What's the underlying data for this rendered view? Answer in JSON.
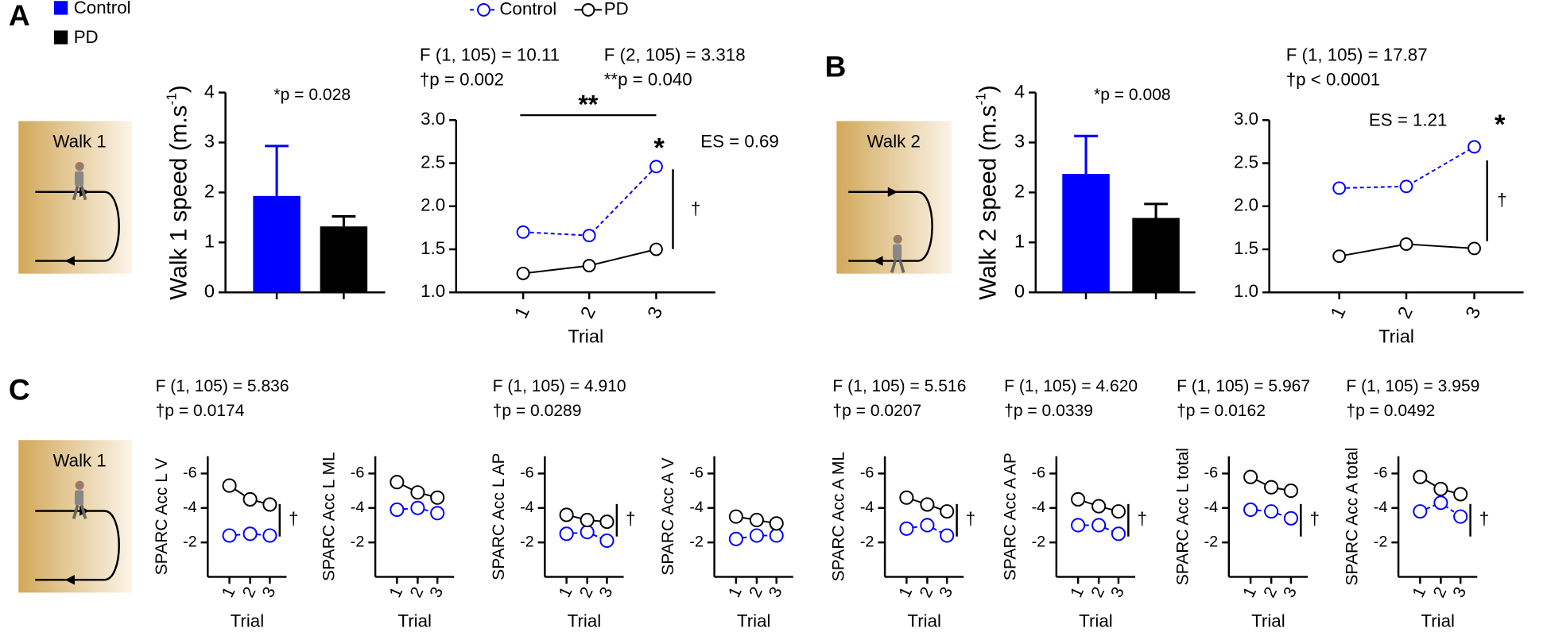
{
  "panel_labels": [
    "A",
    "B",
    "C"
  ],
  "diagrams": [
    "Walk 1",
    "Walk 2",
    "Walk 1"
  ],
  "chart_data": [
    {
      "type": "bar",
      "ylabel": [
        "Walk 1 speed (m.s",
        "-1",
        ")"
      ],
      "ylim": [
        0,
        4
      ],
      "yticks": [
        0,
        1,
        2,
        3,
        4
      ],
      "legend": true,
      "series": [
        {
          "name": "Control",
          "color": "#0000ff",
          "values": [
            1.93
          ],
          "errors": [
            1.0
          ]
        },
        {
          "name": "PD",
          "color": "#000000",
          "values": [
            1.32
          ],
          "errors": [
            0.2
          ]
        }
      ],
      "annotations": [
        "*p = 0.028"
      ]
    },
    {
      "type": "line",
      "categories": [
        "1",
        "2",
        "3"
      ],
      "xlabel": "Trial",
      "legend": true,
      "ylim": [
        1.0,
        3.0
      ],
      "yticks": [
        {
          "value": 1.0,
          "label": "1.0"
        },
        {
          "value": 1.5,
          "label": "1.5"
        },
        {
          "value": 2.0,
          "label": "2.0"
        },
        {
          "value": 2.5,
          "label": "2.5"
        },
        {
          "value": 3.0,
          "label": "3.0"
        }
      ],
      "series": [
        {
          "name": "Control",
          "color": "#0000ff",
          "dashed": true,
          "values": [
            1.7,
            1.66,
            2.46
          ]
        },
        {
          "name": "PD",
          "color": "#000000",
          "dashed": false,
          "values": [
            1.22,
            1.31,
            1.5
          ]
        }
      ],
      "annotations": [
        "F (1, 105) = 10.11",
        "†p = 0.002",
        "F (2, 105) = 3.318",
        "**p = 0.040",
        "**",
        "*",
        "ES = 0.69",
        "†"
      ]
    },
    {
      "type": "bar",
      "ylabel": [
        "Walk 2 speed (m.s",
        "-1",
        ")"
      ],
      "ylim": [
        0,
        4
      ],
      "yticks": [
        0,
        1,
        2,
        3,
        4
      ],
      "legend": false,
      "series": [
        {
          "name": "Control",
          "color": "#0000ff",
          "values": [
            2.37
          ],
          "errors": [
            0.76
          ]
        },
        {
          "name": "PD",
          "color": "#000000",
          "values": [
            1.49
          ],
          "errors": [
            0.28
          ]
        }
      ],
      "annotations": [
        "*p = 0.008"
      ]
    },
    {
      "type": "line",
      "categories": [
        "1",
        "2",
        "3"
      ],
      "xlabel": "Trial",
      "legend": false,
      "ylim": [
        1.0,
        3.0
      ],
      "yticks": [
        {
          "value": 1.0,
          "label": "1.0"
        },
        {
          "value": 1.5,
          "label": "1.5"
        },
        {
          "value": 2.0,
          "label": "2.0"
        },
        {
          "value": 2.5,
          "label": "2.5"
        },
        {
          "value": 3.0,
          "label": "3.0"
        }
      ],
      "series": [
        {
          "name": "Control",
          "color": "#0000ff",
          "dashed": true,
          "values": [
            2.21,
            2.23,
            2.69
          ]
        },
        {
          "name": "PD",
          "color": "#000000",
          "dashed": false,
          "values": [
            1.42,
            1.56,
            1.51
          ]
        }
      ],
      "annotations": [
        "F (1, 105) = 17.87",
        "†p < 0.0001",
        "ES = 1.21",
        "*",
        "†"
      ]
    },
    {
      "type": "line",
      "categories": [
        "1",
        "2",
        "3"
      ],
      "xlabel": "Trial",
      "ylabel": "SPARC Acc L V",
      "legend": false,
      "ylim": [
        0,
        -7
      ],
      "yticks": [
        -6,
        -4,
        -2
      ],
      "series": [
        {
          "name": "Control",
          "color": "#0000ff",
          "dashed": true,
          "values": [
            -2.4,
            -2.5,
            -2.4
          ]
        },
        {
          "name": "PD",
          "color": "#000000",
          "dashed": false,
          "values": [
            -5.3,
            -4.5,
            -4.2
          ]
        }
      ],
      "annotations": [
        "F (1, 105) = 5.836",
        "†p = 0.0174",
        "†"
      ]
    },
    {
      "type": "line",
      "categories": [
        "1",
        "2",
        "3"
      ],
      "xlabel": "Trial",
      "ylabel": "SPARC Acc L ML",
      "legend": false,
      "ylim": [
        0,
        -7
      ],
      "yticks": [
        -6,
        -4,
        -2
      ],
      "series": [
        {
          "name": "Control",
          "color": "#0000ff",
          "dashed": true,
          "values": [
            -3.9,
            -4.0,
            -3.7
          ]
        },
        {
          "name": "PD",
          "color": "#000000",
          "dashed": false,
          "values": [
            -5.5,
            -4.9,
            -4.6
          ]
        }
      ],
      "annotations": []
    },
    {
      "type": "line",
      "categories": [
        "1",
        "2",
        "3"
      ],
      "xlabel": "Trial",
      "ylabel": "SPARC Acc L AP",
      "legend": false,
      "ylim": [
        0,
        -7
      ],
      "yticks": [
        -6,
        -4,
        -2
      ],
      "series": [
        {
          "name": "Control",
          "color": "#0000ff",
          "dashed": true,
          "values": [
            -2.5,
            -2.6,
            -2.1
          ]
        },
        {
          "name": "PD",
          "color": "#000000",
          "dashed": false,
          "values": [
            -3.6,
            -3.3,
            -3.2
          ]
        }
      ],
      "annotations": [
        "F (1, 105) = 4.910",
        "†p = 0.0289",
        "†"
      ]
    },
    {
      "type": "line",
      "categories": [
        "1",
        "2",
        "3"
      ],
      "xlabel": "Trial",
      "ylabel": "SPARC Acc A V",
      "legend": false,
      "ylim": [
        0,
        -7
      ],
      "yticks": [
        -6,
        -4,
        -2
      ],
      "series": [
        {
          "name": "Control",
          "color": "#0000ff",
          "dashed": true,
          "values": [
            -2.2,
            -2.4,
            -2.4
          ]
        },
        {
          "name": "PD",
          "color": "#000000",
          "dashed": false,
          "values": [
            -3.5,
            -3.3,
            -3.1
          ]
        }
      ],
      "annotations": []
    },
    {
      "type": "line",
      "categories": [
        "1",
        "2",
        "3"
      ],
      "xlabel": "Trial",
      "ylabel": "SPARC Acc A ML",
      "legend": false,
      "ylim": [
        0,
        -7
      ],
      "yticks": [
        -6,
        -4,
        -2
      ],
      "series": [
        {
          "name": "Control",
          "color": "#0000ff",
          "dashed": true,
          "values": [
            -2.8,
            -3.0,
            -2.4
          ]
        },
        {
          "name": "PD",
          "color": "#000000",
          "dashed": false,
          "values": [
            -4.6,
            -4.2,
            -3.8
          ]
        }
      ],
      "annotations": [
        "F (1, 105) = 5.516",
        "†p = 0.0207",
        "†"
      ]
    },
    {
      "type": "line",
      "categories": [
        "1",
        "2",
        "3"
      ],
      "xlabel": "Trial",
      "ylabel": "SPARC Acc A AP",
      "legend": false,
      "ylim": [
        0,
        -7
      ],
      "yticks": [
        -6,
        -4,
        -2
      ],
      "series": [
        {
          "name": "Control",
          "color": "#0000ff",
          "dashed": true,
          "values": [
            -3.0,
            -3.0,
            -2.5
          ]
        },
        {
          "name": "PD",
          "color": "#000000",
          "dashed": false,
          "values": [
            -4.5,
            -4.1,
            -3.8
          ]
        }
      ],
      "annotations": [
        "F (1, 105) = 4.620",
        "†p = 0.0339",
        "†"
      ]
    },
    {
      "type": "line",
      "categories": [
        "1",
        "2",
        "3"
      ],
      "xlabel": "Trial",
      "ylabel": "SPARC Acc L total",
      "legend": false,
      "ylim": [
        0,
        -7
      ],
      "yticks": [
        -6,
        -4,
        -2
      ],
      "series": [
        {
          "name": "Control",
          "color": "#0000ff",
          "dashed": true,
          "values": [
            -3.9,
            -3.8,
            -3.4
          ]
        },
        {
          "name": "PD",
          "color": "#000000",
          "dashed": false,
          "values": [
            -5.8,
            -5.2,
            -5.0
          ]
        }
      ],
      "annotations": [
        "F (1, 105) = 5.967",
        "†p = 0.0162",
        "†"
      ]
    },
    {
      "type": "line",
      "categories": [
        "1",
        "2",
        "3"
      ],
      "xlabel": "Trial",
      "ylabel": "SPARC Acc A total",
      "legend": false,
      "ylim": [
        0,
        -7
      ],
      "yticks": [
        -6,
        -4,
        -2
      ],
      "series": [
        {
          "name": "Control",
          "color": "#0000ff",
          "dashed": true,
          "values": [
            -3.8,
            -4.3,
            -3.5
          ]
        },
        {
          "name": "PD",
          "color": "#000000",
          "dashed": false,
          "values": [
            -5.8,
            -5.1,
            -4.8
          ]
        }
      ],
      "annotations": [
        "F (1, 105) = 3.959",
        "†p = 0.0492",
        "†"
      ]
    }
  ]
}
